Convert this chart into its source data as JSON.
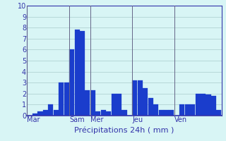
{
  "values": [
    0,
    0.2,
    0.4,
    0.5,
    1.0,
    0.5,
    3.0,
    3.0,
    6.0,
    7.8,
    7.7,
    2.3,
    2.3,
    0.4,
    0.5,
    0.4,
    2.0,
    2.0,
    0.5,
    0,
    3.2,
    3.2,
    2.5,
    1.6,
    1.0,
    0.5,
    0.5,
    0.5,
    0,
    1.0,
    1.0,
    1.0,
    2.0,
    2.0,
    1.9,
    1.8,
    0.5
  ],
  "day_labels": [
    "Mar",
    "Sam",
    "Mer",
    "Jeu",
    "Ven"
  ],
  "day_positions": [
    0,
    8,
    12,
    20,
    28
  ],
  "xlabel": "Précipitations 24h ( mm )",
  "ylim": [
    0,
    10
  ],
  "yticks": [
    0,
    1,
    2,
    3,
    4,
    5,
    6,
    7,
    8,
    9,
    10
  ],
  "bar_color": "#1a3dcc",
  "bar_edge_color": "#1a3dcc",
  "bg_color": "#d8f5f5",
  "grid_color": "#aacccc",
  "axis_line_color": "#3333aa",
  "tick_color": "#3333aa",
  "label_color": "#3333aa",
  "xlabel_fontsize": 8,
  "tick_fontsize": 7
}
